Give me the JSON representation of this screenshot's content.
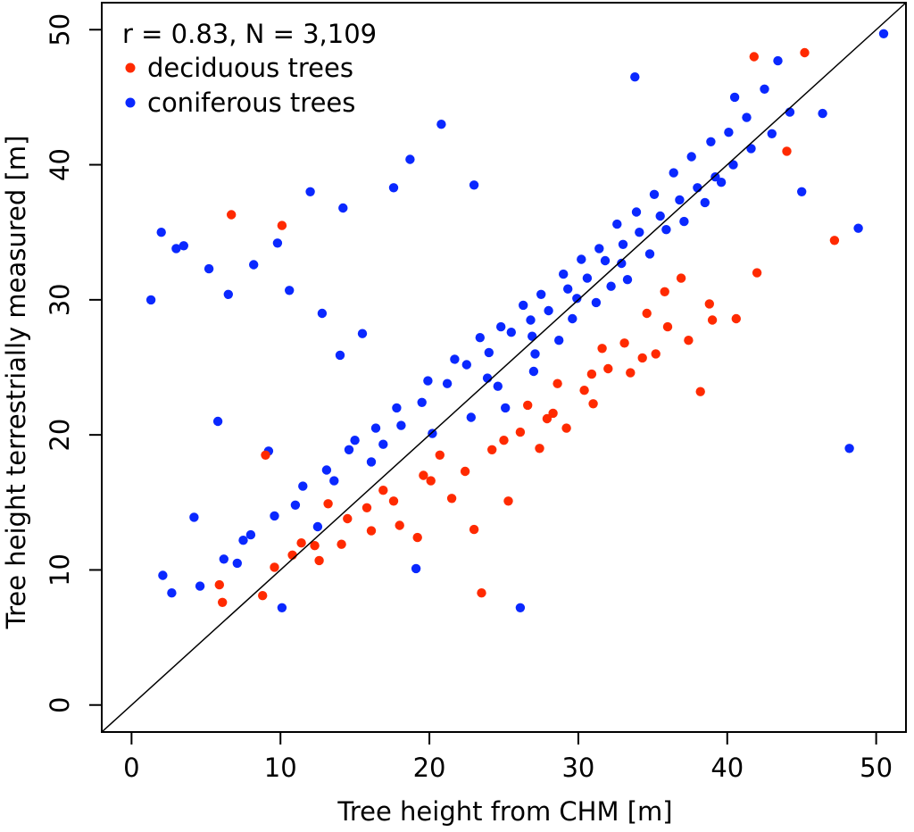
{
  "chart_data": {
    "type": "scatter",
    "title": "",
    "annotation": "r = 0.83, N = 3,109",
    "xlabel": "Tree height from CHM [m]",
    "ylabel": "Tree height terrestrially measured [m]",
    "xlim": [
      -2,
      52
    ],
    "ylim": [
      -2,
      52
    ],
    "xticks": [
      0,
      10,
      20,
      30,
      40,
      50
    ],
    "yticks": [
      0,
      10,
      20,
      30,
      40,
      50
    ],
    "reference_line": {
      "label": "1:1 line",
      "slope": 1,
      "intercept": 0
    },
    "legend_position": "top-left",
    "colors": {
      "deciduous": "#ff2a00",
      "coniferous": "#0a28ff",
      "line": "#000000"
    },
    "series": [
      {
        "name": "deciduous trees",
        "color": "#ff2a00",
        "x": [
          6.7,
          10.1,
          45.2,
          41.8,
          47.2,
          5.9,
          6.1,
          9.0,
          8.8,
          23.5,
          38.2,
          42.0,
          44.0,
          19.2,
          20.1,
          21.5,
          23.0,
          25.3,
          27.4,
          29.2,
          31.0,
          33.5,
          35.2,
          37.4,
          39.0,
          40.6,
          13.2,
          14.5,
          15.8,
          16.9,
          18.0,
          11.4,
          12.3,
          9.6,
          10.8,
          24.2,
          26.1,
          28.3,
          30.4,
          32.0,
          34.3,
          36.0,
          38.8,
          22.4,
          25.0,
          27.9,
          30.9,
          33.1,
          35.8,
          26.6,
          28.6,
          31.6,
          34.6,
          36.9,
          20.7,
          19.6,
          17.6,
          16.1,
          14.1,
          12.6
        ],
        "y": [
          36.3,
          35.5,
          48.3,
          48.0,
          34.4,
          8.9,
          7.6,
          18.5,
          8.1,
          8.3,
          23.2,
          32.0,
          41.0,
          12.4,
          16.6,
          15.3,
          13.0,
          15.1,
          19.0,
          20.5,
          22.3,
          24.6,
          26.0,
          27.0,
          28.5,
          28.6,
          14.9,
          13.8,
          14.6,
          15.9,
          13.3,
          12.0,
          11.8,
          10.2,
          11.1,
          18.9,
          20.2,
          21.6,
          23.3,
          24.9,
          25.7,
          28.0,
          29.7,
          17.3,
          19.6,
          21.2,
          24.5,
          26.8,
          30.6,
          22.2,
          23.8,
          26.4,
          29.0,
          31.6,
          18.5,
          17.0,
          15.1,
          12.9,
          11.9,
          10.7
        ]
      },
      {
        "name": "coniferous trees",
        "color": "#0a28ff",
        "x": [
          1.3,
          2.0,
          3.0,
          3.5,
          5.2,
          6.5,
          8.2,
          9.8,
          12.0,
          14.2,
          17.6,
          18.7,
          20.8,
          23.0,
          33.8,
          40.5,
          43.4,
          46.4,
          48.8,
          50.5,
          48.2,
          26.1,
          19.1,
          2.1,
          2.7,
          4.6,
          5.8,
          7.1,
          8.0,
          9.2,
          10.1,
          11.0,
          12.5,
          13.6,
          15.0,
          16.1,
          16.9,
          18.1,
          19.5,
          21.2,
          22.5,
          24.0,
          25.5,
          26.8,
          28.0,
          29.3,
          30.6,
          31.8,
          33.0,
          34.1,
          35.5,
          36.8,
          38.0,
          39.2,
          40.4,
          41.6,
          43.0,
          44.2,
          45.0,
          4.2,
          6.2,
          7.5,
          9.6,
          11.5,
          13.1,
          14.6,
          16.4,
          17.8,
          19.9,
          21.7,
          23.4,
          24.8,
          26.3,
          27.5,
          29.0,
          30.2,
          31.4,
          32.6,
          33.9,
          35.1,
          36.4,
          37.6,
          38.9,
          40.1,
          41.3,
          42.5,
          22.8,
          24.6,
          27.1,
          29.6,
          32.2,
          34.8,
          37.1,
          39.6,
          20.2,
          23.9,
          26.9,
          29.9,
          32.9,
          35.9,
          38.5,
          28.7,
          31.2,
          33.3,
          27.0,
          25.1,
          14.0,
          15.5,
          12.8,
          10.6
        ],
        "y": [
          30.0,
          35.0,
          33.8,
          34.0,
          32.3,
          30.4,
          32.6,
          34.2,
          38.0,
          36.8,
          38.3,
          40.4,
          43.0,
          38.5,
          46.5,
          45.0,
          47.7,
          43.8,
          35.3,
          49.7,
          19.0,
          7.2,
          10.1,
          9.6,
          8.3,
          8.8,
          21.0,
          10.5,
          12.6,
          18.8,
          7.2,
          14.8,
          13.2,
          16.6,
          19.6,
          18.0,
          19.3,
          20.7,
          22.4,
          23.8,
          25.2,
          26.1,
          27.6,
          28.5,
          29.2,
          30.8,
          31.6,
          32.9,
          34.1,
          35.0,
          36.2,
          37.4,
          38.3,
          39.1,
          40.0,
          41.2,
          42.3,
          43.9,
          38.0,
          13.9,
          10.8,
          12.2,
          14.0,
          16.2,
          17.4,
          18.9,
          20.5,
          22.0,
          24.0,
          25.6,
          27.2,
          28.0,
          29.6,
          30.4,
          31.9,
          33.0,
          33.8,
          35.6,
          36.5,
          37.8,
          39.4,
          40.6,
          41.7,
          42.4,
          43.5,
          45.6,
          21.3,
          23.6,
          26.0,
          28.6,
          31.0,
          33.4,
          35.8,
          38.7,
          20.1,
          24.2,
          27.3,
          30.1,
          32.7,
          35.2,
          37.2,
          27.0,
          29.8,
          31.5,
          24.7,
          22.0,
          25.9,
          27.5,
          29.0,
          30.7
        ]
      }
    ]
  }
}
